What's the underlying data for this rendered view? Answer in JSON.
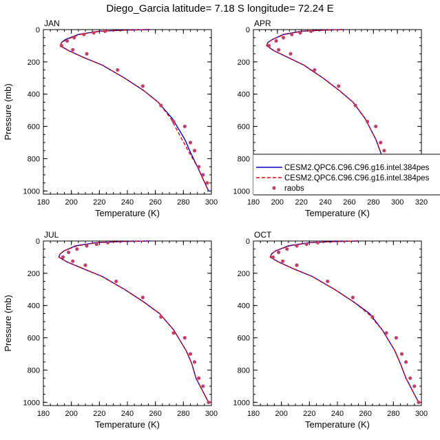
{
  "figure": {
    "title": "Diego_Garcia  latitude= 7.18 S longitude= 72.24 E"
  },
  "legend": {
    "entries": [
      {
        "label": "CESM2.QPC6.C96.C96.g16.intel.384pes",
        "style": "solid",
        "color": "#0000cc"
      },
      {
        "label": "CESM2.QPC6.C96.C96.g16.intel.384pes",
        "style": "dashed",
        "color": "#dd0000"
      },
      {
        "label": "raobs",
        "style": "dot",
        "color": "#c0406a"
      }
    ]
  },
  "chart_data": [
    {
      "type": "line",
      "panel": "JAN",
      "xlabel": "Temperature (K)",
      "ylabel": "Pressure (mb)",
      "xlim": [
        180,
        300
      ],
      "ylim": [
        1020,
        0
      ],
      "xticks": [
        180,
        200,
        220,
        240,
        260,
        280,
        300
      ],
      "yticks": [
        0,
        200,
        400,
        600,
        800,
        1000
      ],
      "series": [
        {
          "name": "CESM2.QPC6.C96.C96.g16.intel.384pes",
          "style": "solid",
          "color": "#0000cc",
          "x": [
            256,
            240,
            220,
            205,
            196,
            193,
            192,
            198,
            208,
            222,
            238,
            252,
            262,
            272,
            281,
            285,
            290,
            298
          ],
          "y": [
            0,
            3,
            10,
            30,
            60,
            80,
            100,
            130,
            170,
            220,
            300,
            380,
            450,
            550,
            680,
            760,
            850,
            1000
          ]
        },
        {
          "name": "CESM2.QPC6.C96.C96.g16.intel.384pes",
          "style": "dashed",
          "color": "#dd0000",
          "x": [
            255,
            240,
            221,
            206,
            197,
            193,
            192,
            198,
            208,
            222,
            238,
            252,
            262,
            271,
            279,
            284,
            290,
            298
          ],
          "y": [
            0,
            3,
            10,
            30,
            60,
            80,
            100,
            130,
            170,
            220,
            300,
            380,
            450,
            550,
            680,
            760,
            850,
            1000
          ]
        },
        {
          "name": "raobs",
          "style": "dot",
          "color": "#c0406a",
          "x": [
            224,
            216,
            209,
            202,
            197,
            193,
            201,
            211,
            233,
            251,
            264,
            273,
            281,
            285,
            288,
            291,
            294,
            297
          ],
          "y": [
            10,
            20,
            30,
            50,
            70,
            100,
            125,
            150,
            250,
            350,
            470,
            570,
            600,
            700,
            750,
            850,
            900,
            950
          ]
        }
      ]
    },
    {
      "type": "line",
      "panel": "APR",
      "xlabel": "Temperature (K)",
      "ylabel": "",
      "xlim": [
        180,
        320
      ],
      "ylim": [
        1020,
        0
      ],
      "xticks": [
        180,
        200,
        220,
        240,
        260,
        280,
        300,
        320
      ],
      "yticks": [
        0,
        200,
        400,
        600,
        800,
        1000
      ],
      "series": [
        {
          "name": "CESM2.QPC6.C96.C96.g16.intel.384pes",
          "style": "solid",
          "color": "#0000cc",
          "x": [
            255,
            240,
            220,
            205,
            196,
            192,
            191,
            197,
            208,
            222,
            238,
            252,
            263,
            273,
            282,
            286,
            290,
            300
          ],
          "y": [
            0,
            3,
            10,
            30,
            60,
            80,
            100,
            130,
            170,
            220,
            300,
            380,
            450,
            550,
            680,
            760,
            850,
            1000
          ]
        },
        {
          "name": "CESM2.QPC6.C96.C96.g16.intel.384pes",
          "style": "dashed",
          "color": "#dd0000",
          "x": [
            254,
            240,
            221,
            206,
            196,
            192,
            191,
            197,
            208,
            222,
            238,
            252,
            263,
            273,
            282,
            286,
            290,
            300
          ],
          "y": [
            0,
            3,
            10,
            30,
            60,
            80,
            100,
            130,
            170,
            220,
            300,
            380,
            450,
            550,
            680,
            760,
            850,
            1000
          ]
        },
        {
          "name": "raobs",
          "style": "dot",
          "color": "#c0406a",
          "x": [
            228,
            219,
            212,
            205,
            199,
            193,
            201,
            211,
            231,
            251,
            265,
            275,
            282,
            286,
            289,
            292,
            295,
            298
          ],
          "y": [
            10,
            20,
            30,
            50,
            70,
            100,
            125,
            150,
            250,
            350,
            470,
            570,
            600,
            700,
            750,
            850,
            900,
            1000
          ]
        }
      ]
    },
    {
      "type": "line",
      "panel": "JUL",
      "xlabel": "Temperature (K)",
      "ylabel": "Pressure (mb)",
      "xlim": [
        180,
        300
      ],
      "ylim": [
        1020,
        0
      ],
      "xticks": [
        180,
        200,
        220,
        240,
        260,
        280,
        300
      ],
      "yticks": [
        0,
        200,
        400,
        600,
        800,
        1000
      ],
      "series": [
        {
          "name": "CESM2.QPC6.C96.C96.g16.intel.384pes",
          "style": "solid",
          "color": "#0000cc",
          "x": [
            256,
            238,
            218,
            203,
            195,
            192,
            191,
            197,
            208,
            222,
            238,
            252,
            263,
            273,
            282,
            286,
            289,
            298
          ],
          "y": [
            0,
            3,
            10,
            30,
            60,
            80,
            100,
            130,
            170,
            220,
            300,
            380,
            450,
            550,
            680,
            760,
            850,
            1000
          ]
        },
        {
          "name": "CESM2.QPC6.C96.C96.g16.intel.384pes",
          "style": "dashed",
          "color": "#dd0000",
          "x": [
            255,
            238,
            219,
            204,
            195,
            192,
            191,
            197,
            208,
            222,
            238,
            252,
            263,
            273,
            282,
            286,
            289,
            298
          ],
          "y": [
            0,
            3,
            10,
            30,
            60,
            80,
            100,
            130,
            170,
            220,
            300,
            380,
            450,
            550,
            680,
            760,
            850,
            1000
          ]
        },
        {
          "name": "raobs",
          "style": "dot",
          "color": "#c0406a",
          "x": [
            226,
            218,
            211,
            204,
            198,
            194,
            201,
            210,
            232,
            251,
            264,
            273,
            281,
            285,
            288,
            291,
            294,
            298
          ],
          "y": [
            10,
            20,
            30,
            50,
            70,
            100,
            125,
            150,
            250,
            350,
            470,
            570,
            600,
            700,
            750,
            850,
            900,
            1000
          ]
        }
      ]
    },
    {
      "type": "line",
      "panel": "OCT",
      "xlabel": "Temperature (K)",
      "ylabel": "",
      "xlim": [
        180,
        300
      ],
      "ylim": [
        1020,
        0
      ],
      "xticks": [
        180,
        200,
        220,
        240,
        260,
        280,
        300
      ],
      "yticks": [
        0,
        200,
        400,
        600,
        800,
        1000
      ],
      "series": [
        {
          "name": "CESM2.QPC6.C96.C96.g16.intel.384pes",
          "style": "solid",
          "color": "#0000cc",
          "x": [
            255,
            240,
            220,
            205,
            196,
            193,
            192,
            198,
            208,
            222,
            238,
            252,
            263,
            272,
            281,
            285,
            289,
            298
          ],
          "y": [
            0,
            3,
            10,
            30,
            60,
            80,
            100,
            130,
            170,
            220,
            300,
            380,
            450,
            550,
            680,
            760,
            850,
            1000
          ]
        },
        {
          "name": "CESM2.QPC6.C96.C96.g16.intel.384pes",
          "style": "dashed",
          "color": "#dd0000",
          "x": [
            254,
            240,
            221,
            206,
            196,
            193,
            192,
            198,
            208,
            222,
            238,
            252,
            262,
            272,
            281,
            285,
            289,
            298
          ],
          "y": [
            0,
            3,
            10,
            30,
            60,
            80,
            100,
            130,
            170,
            220,
            300,
            380,
            450,
            550,
            680,
            760,
            850,
            1000
          ]
        },
        {
          "name": "raobs",
          "style": "dot",
          "color": "#c0406a",
          "x": [
            226,
            218,
            211,
            204,
            198,
            194,
            201,
            211,
            233,
            251,
            265,
            275,
            282,
            286,
            289,
            292,
            295,
            298
          ],
          "y": [
            10,
            20,
            30,
            50,
            70,
            100,
            125,
            150,
            250,
            350,
            470,
            570,
            600,
            700,
            750,
            850,
            900,
            1000
          ]
        }
      ]
    }
  ]
}
